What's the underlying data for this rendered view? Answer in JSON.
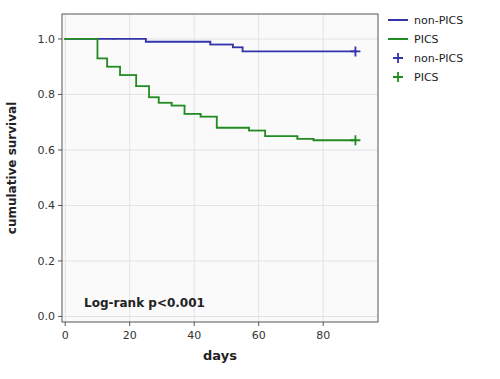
{
  "chart_data": {
    "type": "step",
    "xlabel": "days",
    "ylabel": "cumulative survival",
    "annotation": "Log-rank p<0.001",
    "xlim": [
      -1,
      97
    ],
    "ylim": [
      -0.02,
      1.09
    ],
    "xticks": [
      0,
      20,
      40,
      60,
      80
    ],
    "yticks": [
      {
        "value": 0.0,
        "label": "0.0"
      },
      0.2,
      0.4,
      0.6,
      0.8,
      {
        "value": 1.0,
        "label": "1.0"
      }
    ],
    "legend": "right",
    "series": [
      {
        "name": "non-PICS",
        "type": "step",
        "color": "#3333aa",
        "x": [
          0,
          15,
          25,
          45,
          52,
          55,
          90
        ],
        "values": [
          1.0,
          1.0,
          0.99,
          0.98,
          0.97,
          0.955,
          0.955
        ]
      },
      {
        "name": "PICS",
        "type": "step",
        "color": "#228B22",
        "x": [
          0,
          10,
          13,
          17,
          22,
          26,
          29,
          33,
          37,
          42,
          47,
          57,
          62,
          72,
          77,
          90
        ],
        "values": [
          1.0,
          0.93,
          0.9,
          0.87,
          0.83,
          0.79,
          0.77,
          0.76,
          0.73,
          0.72,
          0.68,
          0.67,
          0.65,
          0.64,
          0.635,
          0.635
        ]
      },
      {
        "name": "non-PICS",
        "type": "scatter",
        "marker": "plus",
        "color": "#3333aa",
        "x": [
          90
        ],
        "values": [
          0.955
        ]
      },
      {
        "name": "PICS",
        "type": "scatter",
        "marker": "plus",
        "color": "#228B22",
        "x": [
          90
        ],
        "values": [
          0.635
        ]
      }
    ]
  }
}
